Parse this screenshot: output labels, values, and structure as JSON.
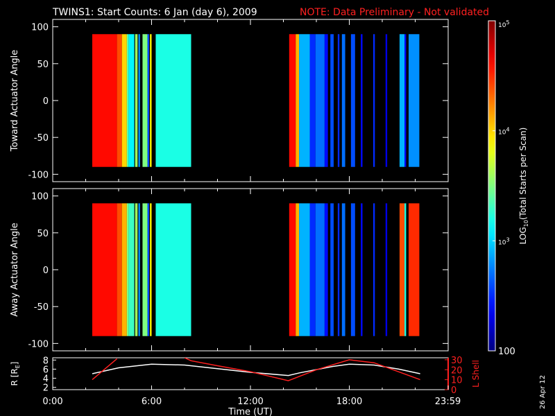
{
  "title": {
    "main": "TWINS1: Start Counts:  6 Jan (day   6), 2009",
    "note": "NOTE: Data Preliminary - Not validated",
    "note_color": "#ff2020"
  },
  "stamp": "26 Apr 12",
  "colors": {
    "axis": "#ffffff",
    "background": "#000000",
    "r_line": "#ffffff",
    "lshell_line": "#ff2020"
  },
  "chart_data": [
    {
      "type": "heatmap",
      "name": "toward",
      "ylabel": "Toward Actuator Angle",
      "xlim": [
        0,
        24
      ],
      "ylim": [
        -110,
        110
      ],
      "yticks": [
        {
          "v": -100,
          "l": "-100"
        },
        {
          "v": -50,
          "l": "-50"
        },
        {
          "v": 0,
          "l": "0"
        },
        {
          "v": 50,
          "l": "50"
        },
        {
          "v": 100,
          "l": "100"
        }
      ],
      "angle_range": [
        -90,
        90
      ],
      "strips": [
        {
          "t0": 2.4,
          "t1": 3.9,
          "v": 4.6
        },
        {
          "t0": 3.9,
          "t1": 4.2,
          "v": 4.4
        },
        {
          "t0": 4.2,
          "t1": 4.5,
          "v": 4.0
        },
        {
          "t0": 4.5,
          "t1": 4.6,
          "v": 3.4
        },
        {
          "t0": 4.6,
          "t1": 4.95,
          "v": 3.1
        },
        {
          "t0": 5.0,
          "t1": 5.15,
          "v": 3.6
        },
        {
          "t0": 5.2,
          "t1": 5.3,
          "v": 2.8
        },
        {
          "t0": 5.45,
          "t1": 5.75,
          "v": 3.5
        },
        {
          "t0": 5.75,
          "t1": 5.85,
          "v": 2.6
        },
        {
          "t0": 5.9,
          "t1": 6.0,
          "v": 3.9
        },
        {
          "t0": 6.25,
          "t1": 8.4,
          "v": 3.2
        },
        {
          "t0": 14.35,
          "t1": 14.75,
          "v": 4.6
        },
        {
          "t0": 14.75,
          "t1": 14.95,
          "v": 4.1
        },
        {
          "t0": 14.95,
          "t1": 15.6,
          "v": 2.9
        },
        {
          "t0": 15.6,
          "t1": 15.95,
          "v": 2.5
        },
        {
          "t0": 15.95,
          "t1": 16.5,
          "v": 2.7
        },
        {
          "t0": 16.5,
          "t1": 16.7,
          "v": 2.4
        },
        {
          "t0": 16.85,
          "t1": 17.05,
          "v": 2.6
        },
        {
          "t0": 17.3,
          "t1": 17.4,
          "v": 2.5
        },
        {
          "t0": 17.55,
          "t1": 17.75,
          "v": 2.7
        },
        {
          "t0": 18.1,
          "t1": 18.35,
          "v": 2.6
        },
        {
          "t0": 18.7,
          "t1": 18.8,
          "v": 2.4
        },
        {
          "t0": 19.45,
          "t1": 19.55,
          "v": 2.5
        },
        {
          "t0": 20.2,
          "t1": 20.3,
          "v": 2.3
        },
        {
          "t0": 21.05,
          "t1": 21.35,
          "v": 2.9
        },
        {
          "t0": 21.35,
          "t1": 21.45,
          "v": 2.4
        },
        {
          "t0": 21.6,
          "t1": 22.25,
          "v": 2.8
        }
      ]
    },
    {
      "type": "heatmap",
      "name": "away",
      "ylabel": "Away Actuator Angle",
      "xlim": [
        0,
        24
      ],
      "ylim": [
        -110,
        110
      ],
      "yticks": [
        {
          "v": -100,
          "l": "-100"
        },
        {
          "v": -50,
          "l": "-50"
        },
        {
          "v": 0,
          "l": "0"
        },
        {
          "v": 50,
          "l": "50"
        },
        {
          "v": 100,
          "l": "100"
        }
      ],
      "angle_range": [
        -90,
        90
      ],
      "strips": [
        {
          "t0": 2.4,
          "t1": 3.9,
          "v": 4.6
        },
        {
          "t0": 3.9,
          "t1": 4.2,
          "v": 4.4
        },
        {
          "t0": 4.2,
          "t1": 4.5,
          "v": 4.1
        },
        {
          "t0": 4.5,
          "t1": 4.6,
          "v": 3.5
        },
        {
          "t0": 4.6,
          "t1": 4.95,
          "v": 3.3
        },
        {
          "t0": 5.0,
          "t1": 5.15,
          "v": 3.6
        },
        {
          "t0": 5.2,
          "t1": 5.3,
          "v": 2.8
        },
        {
          "t0": 5.45,
          "t1": 5.75,
          "v": 3.5
        },
        {
          "t0": 5.75,
          "t1": 5.85,
          "v": 2.6
        },
        {
          "t0": 5.9,
          "t1": 6.0,
          "v": 3.9
        },
        {
          "t0": 6.25,
          "t1": 8.4,
          "v": 3.2
        },
        {
          "t0": 14.35,
          "t1": 14.75,
          "v": 4.6
        },
        {
          "t0": 14.75,
          "t1": 14.95,
          "v": 4.1
        },
        {
          "t0": 14.95,
          "t1": 15.6,
          "v": 2.9
        },
        {
          "t0": 15.6,
          "t1": 15.95,
          "v": 2.5
        },
        {
          "t0": 15.95,
          "t1": 16.5,
          "v": 2.7
        },
        {
          "t0": 16.5,
          "t1": 16.7,
          "v": 2.4
        },
        {
          "t0": 16.85,
          "t1": 17.05,
          "v": 2.6
        },
        {
          "t0": 17.3,
          "t1": 17.4,
          "v": 2.5
        },
        {
          "t0": 17.55,
          "t1": 17.75,
          "v": 2.7
        },
        {
          "t0": 18.1,
          "t1": 18.35,
          "v": 2.6
        },
        {
          "t0": 18.7,
          "t1": 18.8,
          "v": 2.4
        },
        {
          "t0": 19.45,
          "t1": 19.55,
          "v": 2.5
        },
        {
          "t0": 20.2,
          "t1": 20.3,
          "v": 2.3
        },
        {
          "t0": 21.05,
          "t1": 21.35,
          "v": 4.4
        },
        {
          "t0": 21.35,
          "t1": 21.45,
          "v": 3.2
        },
        {
          "t0": 21.6,
          "t1": 22.25,
          "v": 4.5
        }
      ]
    },
    {
      "type": "line",
      "name": "orbit",
      "xlabel": "Time (UT)",
      "xlim": [
        0,
        24
      ],
      "xticks": [
        {
          "v": 0,
          "l": "0:00"
        },
        {
          "v": 6,
          "l": "6:00"
        },
        {
          "v": 12,
          "l": "12:00"
        },
        {
          "v": 18,
          "l": "18:00"
        },
        {
          "v": 23.98,
          "l": "23:59"
        }
      ],
      "ylabel_left": "R [R",
      "ylabel_left_sub": "E",
      "ylabel_left_end": "]",
      "ylim_left": [
        1.5,
        8.5
      ],
      "yticks_left": [
        {
          "v": 2,
          "l": "2"
        },
        {
          "v": 4,
          "l": "4"
        },
        {
          "v": 6,
          "l": "6"
        },
        {
          "v": 8,
          "l": "8"
        }
      ],
      "ylabel_right": "L Shell",
      "ylim_right": [
        0,
        32
      ],
      "yticks_right": [
        {
          "v": 0,
          "l": "0"
        },
        {
          "v": 10,
          "l": "10"
        },
        {
          "v": 20,
          "l": "20"
        },
        {
          "v": 30,
          "l": "30"
        }
      ],
      "series": [
        {
          "axis": "left",
          "x": [
            2.4,
            4,
            6,
            8,
            10,
            12,
            14.3,
            15,
            17,
            18,
            19.5,
            21,
            22.3
          ],
          "y": [
            5.0,
            6.3,
            7.1,
            6.9,
            6.1,
            5.3,
            4.6,
            5.2,
            6.6,
            7.1,
            6.9,
            6.0,
            5.0
          ]
        },
        {
          "axis": "right",
          "x": [
            2.4,
            3.9
          ],
          "y": [
            10,
            31
          ]
        },
        {
          "axis": "right",
          "x": [
            8.0,
            8.4,
            10,
            12,
            14.3,
            16,
            18,
            19.5,
            22.3
          ],
          "y": [
            32,
            29,
            24,
            18,
            9,
            20,
            30,
            27,
            10
          ]
        }
      ]
    },
    {
      "type": "colorbar",
      "name": "colorbar",
      "label": "LOG",
      "label_sub": "10",
      "label_end": "(Total Starts per Scan)",
      "range": [
        2,
        5
      ],
      "ticks": [
        {
          "v": 2,
          "l": "100"
        },
        {
          "v": 3,
          "l": "10",
          "sup": "3"
        },
        {
          "v": 4,
          "l": "10",
          "sup": "4"
        },
        {
          "v": 5,
          "l": "10",
          "sup": "5"
        }
      ]
    }
  ]
}
